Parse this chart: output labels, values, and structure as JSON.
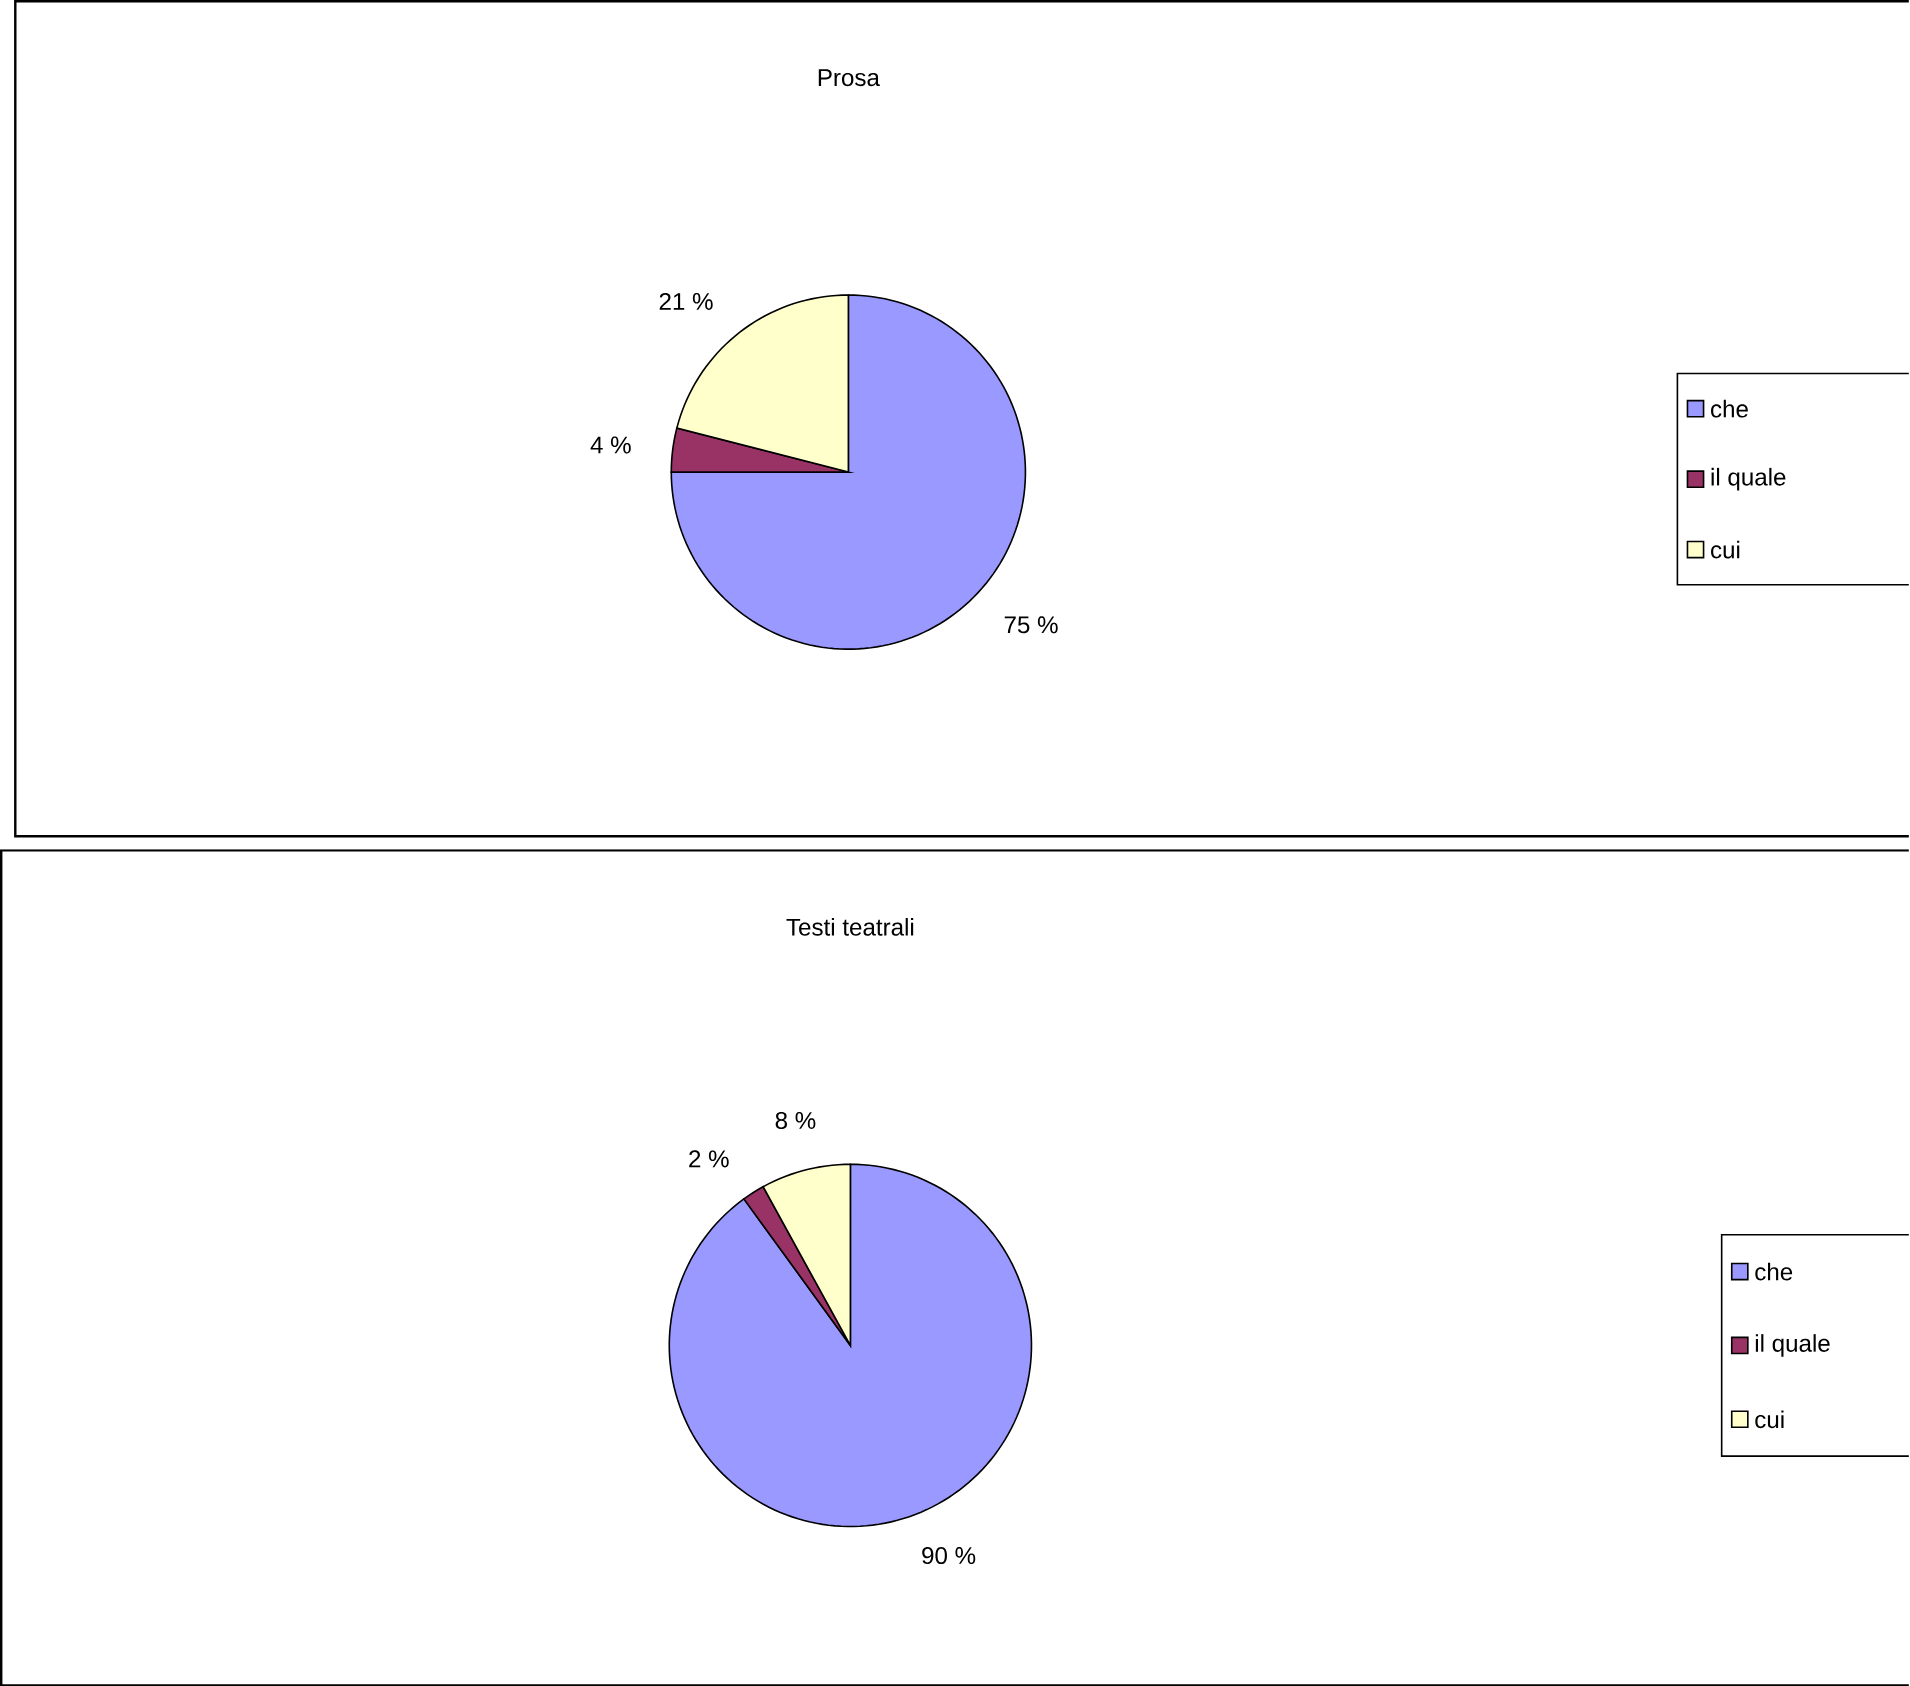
{
  "chart_data": [
    {
      "type": "pie",
      "title": "Prosa",
      "categories": [
        "che",
        "il quale",
        "cui"
      ],
      "values": [
        75,
        4,
        21
      ],
      "colors": [
        "#9999ff",
        "#993366",
        "#ffffcc"
      ],
      "value_labels": [
        "75 %",
        "4 %",
        "21 %"
      ],
      "legend": "right"
    },
    {
      "type": "pie",
      "title": "Testi teatrali",
      "categories": [
        "che",
        "il quale",
        "cui"
      ],
      "values": [
        90,
        2,
        8
      ],
      "colors": [
        "#9999ff",
        "#993366",
        "#ffffcc"
      ],
      "value_labels": [
        "90 %",
        "2 %",
        "8 %"
      ],
      "legend": "right"
    }
  ]
}
